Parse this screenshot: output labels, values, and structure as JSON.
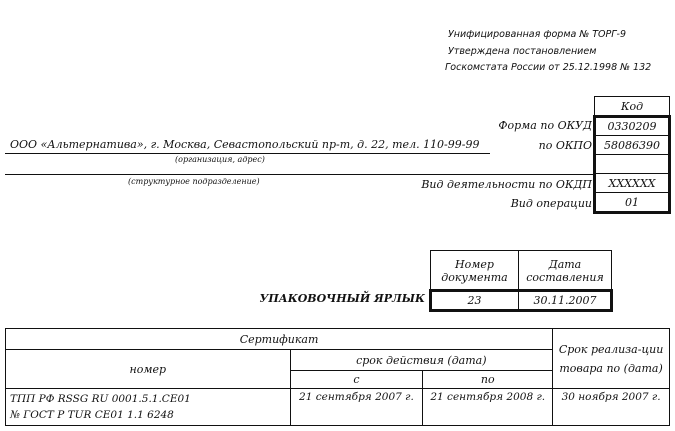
{
  "header": {
    "line1": "Унифицированная форма № ТОРГ-9",
    "line2": "Утверждена постановлением",
    "line3": "Госкомстата России от 25.12.1998 № 132"
  },
  "organization": {
    "value": "ООО «Альтернатива», г. Москва, Севастопольский пр-т, д. 22, тел. 110-99-99",
    "caption": "(организация, адрес)",
    "division_caption": "(структурное подразделение)"
  },
  "codes": {
    "header": "Код",
    "rows": [
      {
        "label": "Форма по ОКУД",
        "value": "0330209"
      },
      {
        "label": "по ОКПО",
        "value": "58086390"
      },
      {
        "label": "",
        "value": ""
      },
      {
        "label": "Вид деятельности по ОКДП",
        "value": "XXXXXX"
      },
      {
        "label": "Вид операции",
        "value": "01"
      }
    ]
  },
  "document": {
    "title": "УПАКОВОЧНЫЙ ЯРЛЫК",
    "number_header": "Номер документа",
    "date_header": "Дата составления",
    "number": "23",
    "date": "30.11.2007"
  },
  "certificate_table": {
    "group_header": "Сертификат",
    "number_header": "номер",
    "validity_header": "срок действия (дата)",
    "from_header": "с",
    "to_header": "по",
    "sale_header": "Срок реализа-ции товара по (дата)",
    "row": {
      "number_line1": "ТПП РФ RSSG RU 0001.5.1.CE01",
      "number_line2": "№ ГОСТ Р TUR CE01 1.1 6248",
      "from": "21 сентября 2007 г.",
      "to": "21 сентября 2008 г.",
      "sale": "30 ноября 2007 г."
    }
  }
}
